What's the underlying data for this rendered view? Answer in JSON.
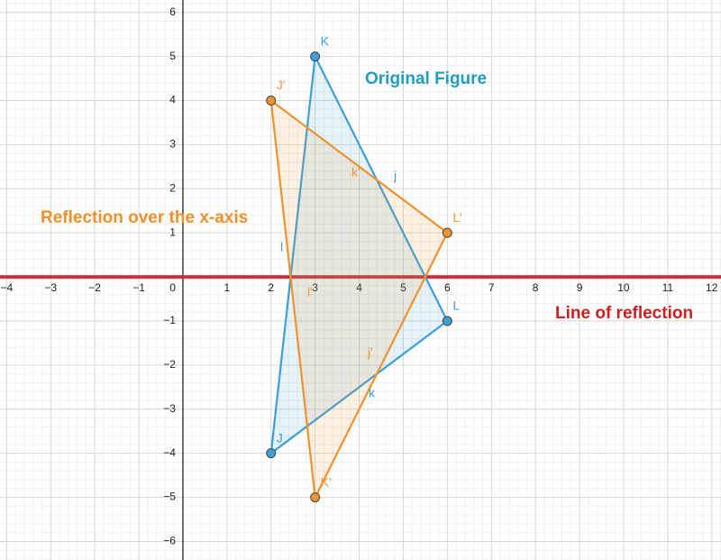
{
  "chart_data": {
    "type": "polygon",
    "xlim": [
      -4.15,
      12.21
    ],
    "ylim": [
      -6.42,
      6.28
    ],
    "xticks": [
      {
        "value": -4,
        "label": "−4"
      },
      {
        "value": -3,
        "label": "−3"
      },
      {
        "value": -2,
        "label": "−2"
      },
      {
        "value": -1,
        "label": "−1"
      },
      0,
      1,
      2,
      3,
      4,
      5,
      6,
      7,
      8,
      9,
      10,
      11,
      12
    ],
    "yticks": [
      {
        "value": -6,
        "label": "−6"
      },
      {
        "value": -5,
        "label": "−5"
      },
      {
        "value": -4,
        "label": "−4"
      },
      {
        "value": -3,
        "label": "−3"
      },
      {
        "value": -2,
        "label": "−2"
      },
      {
        "value": -1,
        "label": "−1"
      },
      1,
      2,
      3,
      4,
      5,
      6
    ],
    "grid": true,
    "series": [
      {
        "color": "#3d9fd8",
        "x": [
          3,
          6,
          2
        ],
        "y": [
          5,
          -1,
          -4
        ],
        "labels": [
          "K",
          "L",
          "J"
        ]
      },
      {
        "color": "#f0922e",
        "x": [
          2,
          6,
          3
        ],
        "y": [
          4,
          1,
          -5
        ],
        "labels": [
          "J'",
          "L'",
          "K'"
        ]
      }
    ],
    "reflection_line": {
      "y": 0,
      "color": "#d7262b"
    },
    "annotations": [
      {
        "text": "Original Figure",
        "color": "#1f9ebd"
      },
      {
        "text": "Reflection over the x-axis",
        "color": "#f0902a"
      },
      {
        "text": "Line of reflection",
        "color": "#cc1f1f"
      }
    ],
    "intersection_labels": [
      "j",
      "k'",
      "l",
      "l'",
      "j'",
      "k"
    ]
  }
}
